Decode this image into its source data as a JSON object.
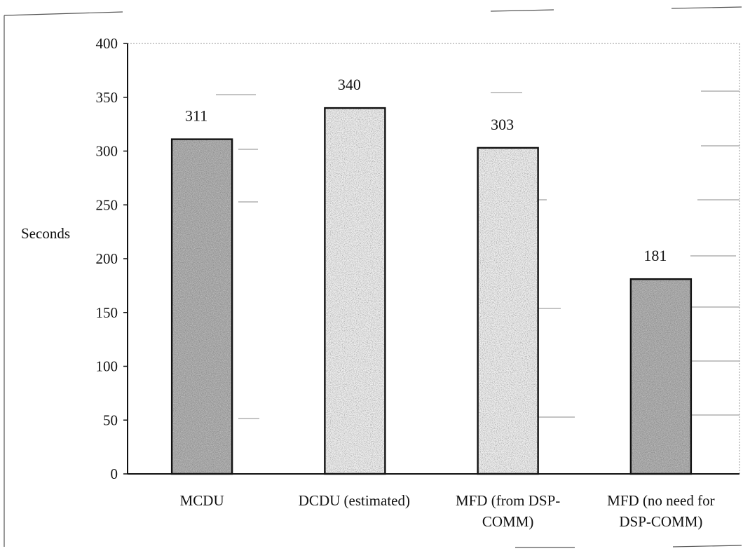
{
  "chart_data": {
    "type": "bar",
    "categories": [
      [
        "MCDU"
      ],
      [
        "DCDU (estimated)"
      ],
      [
        "MFD (from DSP-",
        "COMM)"
      ],
      [
        "MFD (no need for",
        "DSP-COMM)"
      ]
    ],
    "values": [
      311,
      340,
      303,
      181
    ],
    "data_labels": [
      "311",
      "340",
      "303",
      "181"
    ],
    "title": "",
    "xlabel": "",
    "ylabel": "Seconds",
    "ylim": [
      0,
      400
    ],
    "yticks": [
      0,
      50,
      100,
      150,
      200,
      250,
      300,
      350,
      400
    ],
    "grid": false,
    "legend": "none",
    "bar_shades": [
      "dark",
      "light",
      "light",
      "dark"
    ]
  }
}
